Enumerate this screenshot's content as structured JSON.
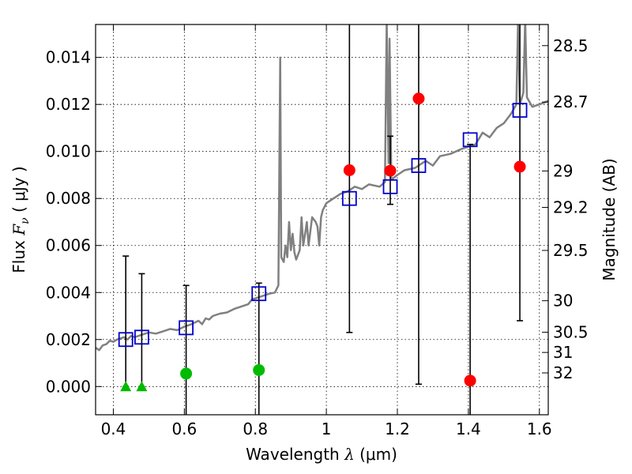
{
  "chart_data": {
    "type": "scatter",
    "xlabel_prefix": "Wavelength  ",
    "xlabel_symbol": "λ",
    "xlabel_unit": " (μm)",
    "ylabel_prefix": "Flux  ",
    "ylabel_symbol": "F",
    "ylabel_sub": "ν",
    "ylabel_unit": "  ( μJy )",
    "y2label": "Magnitude (AB)",
    "xlim": [
      0.35,
      1.625
    ],
    "ylim": [
      -0.0012,
      0.0154
    ],
    "x_ticks": [
      {
        "value": 0.4,
        "label": "0.4"
      },
      {
        "value": 0.6,
        "label": "0.6"
      },
      {
        "value": 0.8,
        "label": "0.8"
      },
      {
        "value": 1.0,
        "label": "1"
      },
      {
        "value": 1.2,
        "label": "1.2"
      },
      {
        "value": 1.4,
        "label": "1.4"
      },
      {
        "value": 1.6,
        "label": "1.6"
      }
    ],
    "y_ticks": [
      {
        "value": 0.0,
        "label": "0.000"
      },
      {
        "value": 0.002,
        "label": "0.002"
      },
      {
        "value": 0.004,
        "label": "0.004"
      },
      {
        "value": 0.006,
        "label": "0.006"
      },
      {
        "value": 0.008,
        "label": "0.008"
      },
      {
        "value": 0.01,
        "label": "0.010"
      },
      {
        "value": 0.012,
        "label": "0.012"
      },
      {
        "value": 0.014,
        "label": "0.014"
      }
    ],
    "y2_ticks": [
      {
        "flux": 0.0145,
        "label": "28.5"
      },
      {
        "flux": 0.0121,
        "label": "28.7"
      },
      {
        "flux": 0.00917,
        "label": "29"
      },
      {
        "flux": 0.00762,
        "label": "29.2"
      },
      {
        "flux": 0.00579,
        "label": "29.5"
      },
      {
        "flux": 0.00365,
        "label": "30"
      },
      {
        "flux": 0.00231,
        "label": "30.5"
      },
      {
        "flux": 0.00145,
        "label": "31"
      },
      {
        "flux": 0.00058,
        "label": "32"
      }
    ],
    "grid": true,
    "colors": {
      "model": "#808080",
      "photometry_box": "#0000cc",
      "detection_green": "#00bb00",
      "detection_red": "#ff0000",
      "error_bar": "#000000"
    },
    "model_spectrum": [
      [
        0.35,
        0.00165
      ],
      [
        0.36,
        0.00155
      ],
      [
        0.37,
        0.00175
      ],
      [
        0.38,
        0.0018
      ],
      [
        0.39,
        0.00195
      ],
      [
        0.4,
        0.0019
      ],
      [
        0.41,
        0.002
      ],
      [
        0.42,
        0.00205
      ],
      [
        0.43,
        0.0021
      ],
      [
        0.44,
        0.002
      ],
      [
        0.45,
        0.00215
      ],
      [
        0.46,
        0.0021
      ],
      [
        0.48,
        0.0022
      ],
      [
        0.5,
        0.0023
      ],
      [
        0.52,
        0.00225
      ],
      [
        0.54,
        0.00235
      ],
      [
        0.56,
        0.00245
      ],
      [
        0.58,
        0.0024
      ],
      [
        0.6,
        0.00255
      ],
      [
        0.62,
        0.00265
      ],
      [
        0.64,
        0.0028
      ],
      [
        0.65,
        0.00265
      ],
      [
        0.66,
        0.0029
      ],
      [
        0.67,
        0.00285
      ],
      [
        0.68,
        0.003
      ],
      [
        0.7,
        0.0031
      ],
      [
        0.72,
        0.00315
      ],
      [
        0.74,
        0.0033
      ],
      [
        0.76,
        0.0034
      ],
      [
        0.78,
        0.0035
      ],
      [
        0.79,
        0.0037
      ],
      [
        0.8,
        0.00375
      ],
      [
        0.82,
        0.00385
      ],
      [
        0.84,
        0.00395
      ],
      [
        0.855,
        0.004
      ],
      [
        0.865,
        0.0043
      ],
      [
        0.87,
        0.014
      ],
      [
        0.873,
        0.0055
      ],
      [
        0.88,
        0.0053
      ],
      [
        0.885,
        0.006
      ],
      [
        0.89,
        0.0055
      ],
      [
        0.895,
        0.007
      ],
      [
        0.9,
        0.0058
      ],
      [
        0.905,
        0.0065
      ],
      [
        0.91,
        0.0057
      ],
      [
        0.915,
        0.0054
      ],
      [
        0.92,
        0.0056
      ],
      [
        0.925,
        0.0058
      ],
      [
        0.93,
        0.0072
      ],
      [
        0.935,
        0.006
      ],
      [
        0.94,
        0.0065
      ],
      [
        0.945,
        0.007
      ],
      [
        0.95,
        0.006
      ],
      [
        0.96,
        0.0072
      ],
      [
        0.97,
        0.007
      ],
      [
        0.975,
        0.0068
      ],
      [
        0.98,
        0.006
      ],
      [
        0.985,
        0.0072
      ],
      [
        0.99,
        0.0075
      ],
      [
        1.0,
        0.0078
      ],
      [
        1.02,
        0.008
      ],
      [
        1.04,
        0.0082
      ],
      [
        1.06,
        0.0083
      ],
      [
        1.08,
        0.0085
      ],
      [
        1.1,
        0.0084
      ],
      [
        1.12,
        0.0086
      ],
      [
        1.15,
        0.0085
      ],
      [
        1.165,
        0.0087
      ],
      [
        1.17,
        0.0156
      ],
      [
        1.175,
        0.0095
      ],
      [
        1.178,
        0.0148
      ],
      [
        1.183,
        0.0088
      ],
      [
        1.2,
        0.009
      ],
      [
        1.22,
        0.0092
      ],
      [
        1.25,
        0.0093
      ],
      [
        1.28,
        0.0096
      ],
      [
        1.3,
        0.0094
      ],
      [
        1.32,
        0.0098
      ],
      [
        1.35,
        0.0099
      ],
      [
        1.38,
        0.0101
      ],
      [
        1.4,
        0.0102
      ],
      [
        1.42,
        0.0103
      ],
      [
        1.44,
        0.0108
      ],
      [
        1.46,
        0.0106
      ],
      [
        1.48,
        0.011
      ],
      [
        1.5,
        0.0112
      ],
      [
        1.52,
        0.0116
      ],
      [
        1.535,
        0.012
      ],
      [
        1.54,
        0.0156
      ],
      [
        1.545,
        0.012
      ],
      [
        1.555,
        0.0125
      ],
      [
        1.56,
        0.0156
      ],
      [
        1.565,
        0.0123
      ],
      [
        1.58,
        0.0119
      ],
      [
        1.6,
        0.012
      ],
      [
        1.625,
        0.01215
      ]
    ],
    "photometry_boxes": [
      {
        "x": 0.435,
        "y": 0.002
      },
      {
        "x": 0.48,
        "y": 0.0021
      },
      {
        "x": 0.605,
        "y": 0.0025
      },
      {
        "x": 0.81,
        "y": 0.00395
      },
      {
        "x": 1.065,
        "y": 0.008
      },
      {
        "x": 1.18,
        "y": 0.0085
      },
      {
        "x": 1.26,
        "y": 0.0094
      },
      {
        "x": 1.405,
        "y": 0.0105
      },
      {
        "x": 1.545,
        "y": 0.01175
      }
    ],
    "error_bars": [
      {
        "x": 0.435,
        "lo": 0.0,
        "hi": 0.00555
      },
      {
        "x": 0.48,
        "lo": 0.0,
        "hi": 0.0048
      },
      {
        "x": 0.605,
        "lo": -0.0015,
        "hi": 0.0043
      },
      {
        "x": 0.81,
        "lo": -0.0015,
        "hi": 0.0044
      },
      {
        "x": 1.065,
        "lo": 0.0023,
        "hi": 0.016
      },
      {
        "x": 1.18,
        "lo": 0.00775,
        "hi": 0.01065
      },
      {
        "x": 1.26,
        "lo": 0.0001,
        "hi": 0.016
      },
      {
        "x": 1.405,
        "lo": -0.0015,
        "hi": 0.0103
      },
      {
        "x": 1.545,
        "lo": 0.0028,
        "hi": 0.016
      }
    ],
    "green_triangles": [
      {
        "x": 0.435,
        "y": 0.0
      },
      {
        "x": 0.48,
        "y": 0.0
      }
    ],
    "green_circles": [
      {
        "x": 0.605,
        "y": 0.00055
      },
      {
        "x": 0.81,
        "y": 0.0007
      }
    ],
    "red_circles": [
      {
        "x": 1.065,
        "y": 0.0092
      },
      {
        "x": 1.18,
        "y": 0.00918
      },
      {
        "x": 1.26,
        "y": 0.01225
      },
      {
        "x": 1.405,
        "y": 0.00025
      },
      {
        "x": 1.545,
        "y": 0.00935
      }
    ]
  }
}
